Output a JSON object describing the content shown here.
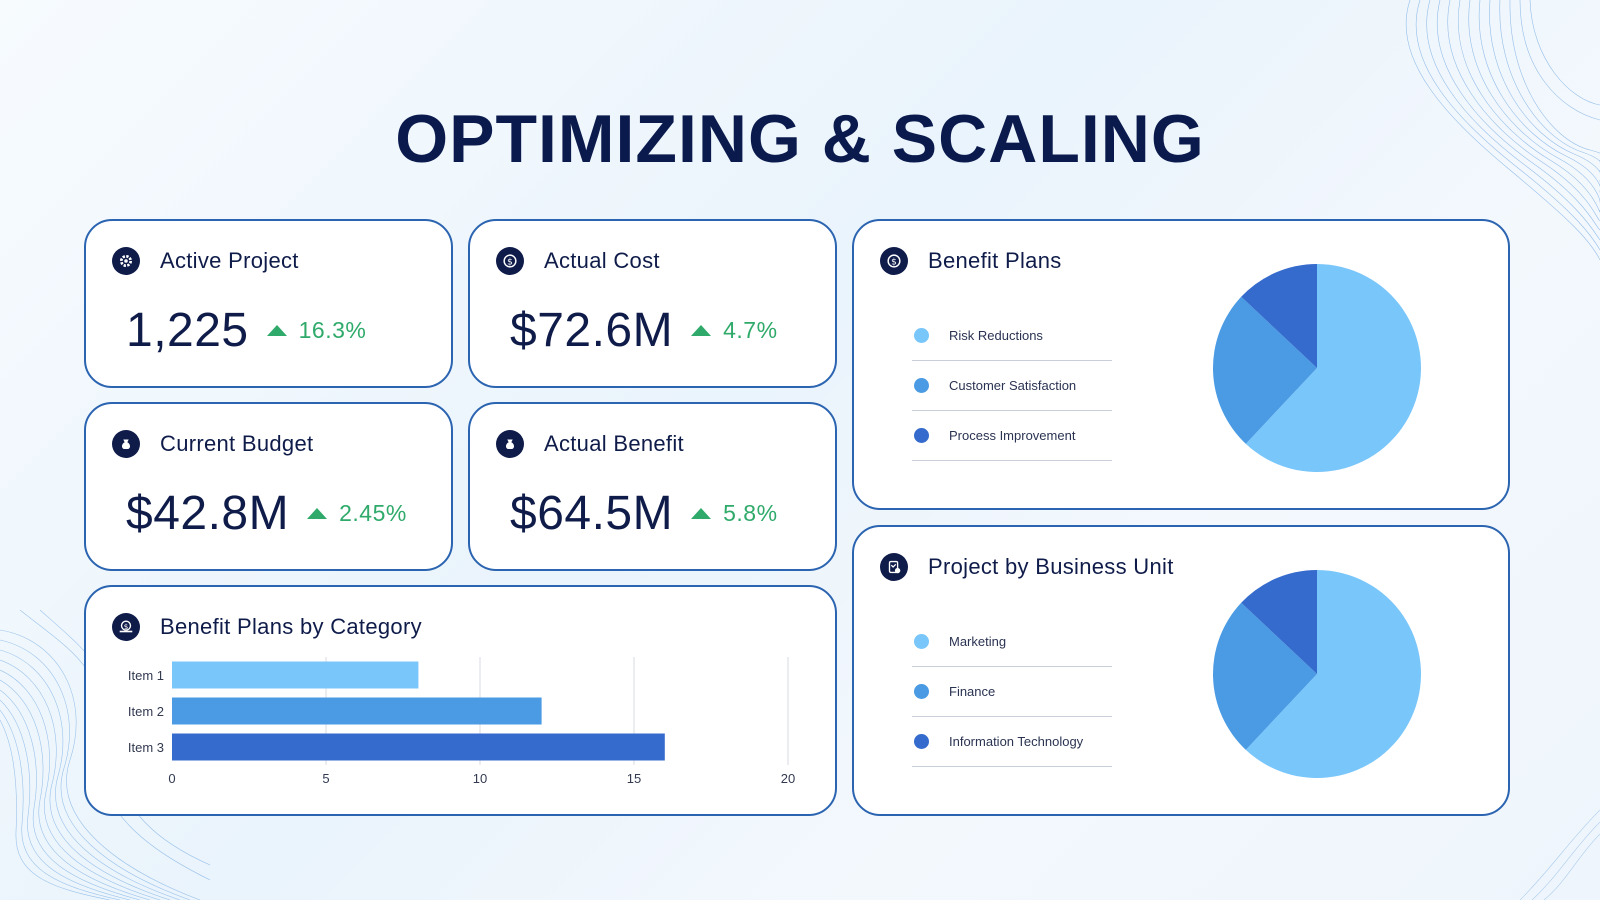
{
  "title": "OPTIMIZING & SCALING",
  "colors": {
    "light": "#79c6fb",
    "mid": "#4a9be4",
    "dark": "#356bcc",
    "positive": "#2faa6a",
    "ink": "#0f1c4a",
    "border": "#2b64b0"
  },
  "kpis": [
    {
      "label": "Active Project",
      "value": "1,225",
      "change": "16.3%",
      "icon": "gear-icon"
    },
    {
      "label": "Actual Cost",
      "value": "$72.6M",
      "change": "4.7%",
      "icon": "dollar-refresh-icon"
    },
    {
      "label": "Current Budget",
      "value": "$42.8M",
      "change": "2.45%",
      "icon": "money-bag-icon"
    },
    {
      "label": "Actual Benefit",
      "value": "$64.5M",
      "change": "5.8%",
      "icon": "money-bag-icon"
    }
  ],
  "charts": {
    "bar_title": "Benefit Plans by Category",
    "pie1_title": "Benefit Plans",
    "pie2_title": "Project by Business Unit"
  },
  "chart_data": [
    {
      "type": "bar",
      "orientation": "horizontal",
      "title": "Benefit Plans by Category",
      "categories": [
        "Item 1",
        "Item 2",
        "Item 3"
      ],
      "values": [
        8,
        12,
        16
      ],
      "xlim": [
        0,
        20
      ],
      "xticks": [
        "0",
        "5",
        "10",
        "15",
        "20"
      ],
      "grid": true,
      "colors": [
        "#79c6fb",
        "#4a9be4",
        "#356bcc"
      ]
    },
    {
      "type": "pie",
      "title": "Benefit Plans",
      "labels": [
        "Risk Reductions",
        "Customer Satisfaction",
        "Process Improvement"
      ],
      "values": [
        62,
        25,
        13
      ],
      "colors": [
        "#79c6fb",
        "#4a9be4",
        "#356bcc"
      ],
      "legend": "left"
    },
    {
      "type": "pie",
      "title": "Project by Business Unit",
      "labels": [
        "Marketing",
        "Finance",
        "Information Technology"
      ],
      "values": [
        62,
        25,
        13
      ],
      "colors": [
        "#79c6fb",
        "#4a9be4",
        "#356bcc"
      ],
      "legend": "left"
    }
  ]
}
